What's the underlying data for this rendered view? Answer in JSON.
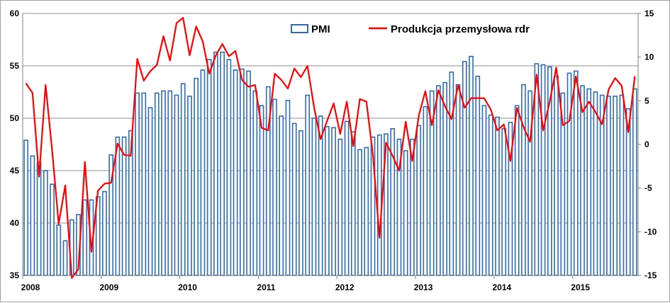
{
  "chart_data": {
    "type": "bar",
    "title": "",
    "xlabel": "",
    "ylabel_left": "",
    "ylabel_right": "",
    "grid": true,
    "legend_position": "top",
    "x_tick_labels": [
      "2008",
      "2009",
      "2010",
      "2011",
      "2012",
      "2013",
      "2014",
      "2015"
    ],
    "y_left": {
      "min": 35,
      "max": 60,
      "ticks": [
        "35",
        "40",
        "45",
        "50",
        "55",
        "60"
      ]
    },
    "y_right": {
      "min": -15,
      "max": 15,
      "ticks": [
        "-15",
        "-10",
        "-5",
        "0",
        "5",
        "10",
        "15"
      ]
    },
    "series": [
      {
        "name": "PMI",
        "type": "bar",
        "axis": "left",
        "color": "#2e6db4",
        "values": [
          47.9,
          46.4,
          45.8,
          45.0,
          43.7,
          39.8,
          38.3,
          40.3,
          40.8,
          42.2,
          42.2,
          42.5,
          43.0,
          46.5,
          48.2,
          48.2,
          48.8,
          52.4,
          52.4,
          51.0,
          52.4,
          52.6,
          52.6,
          52.2,
          53.3,
          52.1,
          53.8,
          54.6,
          55.6,
          56.3,
          56.3,
          55.6,
          54.6,
          54.7,
          54.5,
          52.6,
          51.2,
          53.0,
          51.8,
          50.2,
          51.7,
          49.5,
          48.8,
          52.2,
          50.0,
          50.2,
          49.2,
          49.1,
          48.0,
          49.7,
          48.7,
          47.0,
          47.2,
          48.2,
          48.4,
          48.5,
          49.0,
          48.0,
          46.9,
          48.0,
          49.3,
          51.1,
          52.6,
          53.1,
          53.4,
          54.4,
          53.2,
          55.4,
          55.9,
          54.0,
          51.2,
          50.3,
          50.1,
          49.0,
          49.6,
          51.2,
          53.2,
          52.6,
          55.2,
          55.1,
          54.9,
          54.0,
          52.4,
          54.3,
          54.5,
          53.1,
          52.8,
          52.5,
          52.2,
          52.1,
          52.1,
          52.2,
          50.9,
          52.8
        ]
      },
      {
        "name": "Produkcja przemysłowa rdr",
        "type": "line",
        "axis": "right",
        "color": "#ff0000",
        "values": [
          7.0,
          5.9,
          -3.7,
          6.8,
          -0.7,
          -9.1,
          -4.7,
          -15.3,
          -14.3,
          -2.0,
          -12.3,
          -5.3,
          -4.5,
          -4.4,
          0.1,
          -1.2,
          -1.3,
          9.8,
          7.3,
          8.4,
          9.1,
          12.4,
          9.6,
          13.9,
          14.5,
          10.2,
          13.5,
          11.8,
          8.1,
          10.2,
          11.5,
          10.1,
          10.7,
          7.4,
          6.6,
          6.8,
          1.9,
          1.6,
          8.1,
          7.4,
          6.4,
          8.7,
          7.7,
          9.0,
          4.3,
          0.6,
          2.7,
          4.7,
          1.2,
          4.9,
          -0.2,
          5.2,
          4.9,
          -1.2,
          -10.7,
          0.2,
          -1.3,
          -3.0,
          2.6,
          -1.9,
          3.3,
          6.1,
          2.2,
          6.2,
          4.4,
          2.9,
          6.8,
          4.2,
          5.3,
          5.3,
          5.3,
          4.0,
          1.6,
          2.3,
          -1.9,
          4.2,
          2.0,
          0.3,
          8.0,
          1.6,
          4.9,
          8.8,
          2.2,
          2.7,
          7.8,
          3.7,
          4.9,
          3.7,
          2.3,
          6.3,
          7.6,
          6.7,
          1.4,
          7.8
        ]
      }
    ]
  }
}
